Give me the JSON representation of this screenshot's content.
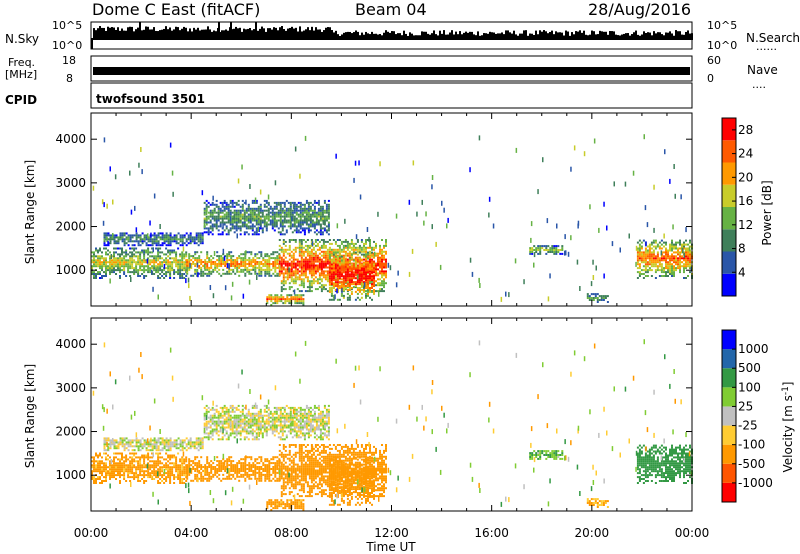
{
  "header": {
    "station": "Dome C East (fitACF)",
    "beam": "Beam 04",
    "date": "28/Aug/2016"
  },
  "strips": {
    "nsky_label": "N.Sky",
    "nsky_top": "10^5",
    "nsky_bottom": "10^0",
    "nsearch_label": "N.Search",
    "nsearch_top": "10^5",
    "nsearch_bottom": "10^0",
    "freq_label": "Freq.",
    "freq_unit": "[MHz]",
    "freq_top": "18",
    "freq_bottom": "8",
    "nave_label": "Nave",
    "nave_top": "60",
    "nave_bottom": "0",
    "cpid_label": "CPID",
    "cpid_value": "twofsound 3501",
    "dots": "......",
    "dots_short": "...."
  },
  "colors": {
    "power": [
      "#0000ff",
      "#2a56a8",
      "#3f7f5a",
      "#66b244",
      "#c8cc2a",
      "#ff9900",
      "#ff5a00",
      "#ff0000"
    ],
    "velocity": [
      "#ff0000",
      "#ff5500",
      "#ff9900",
      "#ffcc33",
      "#c0c0c0",
      "#80cc33",
      "#339944",
      "#2266aa",
      "#0000ff"
    ]
  },
  "chart_data": [
    {
      "type": "heatmap",
      "name": "power",
      "ylabel": "Slant Range [km]",
      "xlabel": "Time UT",
      "x_ticks": [
        "00:00",
        "04:00",
        "08:00",
        "12:00",
        "16:00",
        "20:00",
        "00:00"
      ],
      "y_ticks": [
        "1000",
        "2000",
        "3000",
        "4000"
      ],
      "xlim_hours": [
        0,
        24
      ],
      "ylim_km": [
        180,
        4600
      ],
      "colorbar_label": "Power [dB]",
      "colorbar_ticks": [
        "4",
        "8",
        "12",
        "16",
        "20",
        "24",
        "28"
      ],
      "colorbar_range": [
        0,
        30
      ],
      "regions": [
        {
          "t0": 0.0,
          "t1": 3.8,
          "r0": 800,
          "r1": 1500,
          "peak": 18
        },
        {
          "t0": 3.8,
          "t1": 7.5,
          "r0": 850,
          "r1": 1400,
          "peak": 22
        },
        {
          "t0": 7.5,
          "t1": 11.8,
          "r0": 500,
          "r1": 1700,
          "peak": 28
        },
        {
          "t0": 9.5,
          "t1": 11.3,
          "r0": 300,
          "r1": 1400,
          "peak": 30
        },
        {
          "t0": 4.5,
          "t1": 9.5,
          "r0": 1800,
          "r1": 2600,
          "peak": 12
        },
        {
          "t0": 0.5,
          "t1": 4.5,
          "r0": 1550,
          "r1": 1850,
          "peak": 10
        },
        {
          "t0": 7.0,
          "t1": 8.5,
          "r0": 180,
          "r1": 450,
          "peak": 24
        },
        {
          "t0": 17.5,
          "t1": 18.8,
          "r0": 1350,
          "r1": 1550,
          "peak": 16
        },
        {
          "t0": 19.8,
          "t1": 20.6,
          "r0": 250,
          "r1": 450,
          "peak": 12
        },
        {
          "t0": 21.8,
          "t1": 24.0,
          "r0": 800,
          "r1": 1700,
          "peak": 24
        }
      ]
    },
    {
      "type": "heatmap",
      "name": "velocity",
      "ylabel": "Slant Range [km]",
      "xlabel": "Time UT",
      "x_ticks": [
        "00:00",
        "04:00",
        "08:00",
        "12:00",
        "16:00",
        "20:00",
        "00:00"
      ],
      "y_ticks": [
        "1000",
        "2000",
        "3000",
        "4000"
      ],
      "xlim_hours": [
        0,
        24
      ],
      "ylim_km": [
        180,
        4600
      ],
      "colorbar_label": "Velocity [m s^-1]",
      "colorbar_ticks": [
        "1000",
        "500",
        "100",
        "25",
        "-25",
        "-100",
        "-500",
        "-1000"
      ],
      "regions": [
        {
          "t0": 0.0,
          "t1": 3.8,
          "r0": 800,
          "r1": 1500,
          "vel": -150
        },
        {
          "t0": 3.8,
          "t1": 7.5,
          "r0": 850,
          "r1": 1400,
          "vel": -200
        },
        {
          "t0": 7.5,
          "t1": 11.8,
          "r0": 500,
          "r1": 1700,
          "vel": -200
        },
        {
          "t0": 9.5,
          "t1": 11.3,
          "r0": 300,
          "r1": 1400,
          "vel": -300
        },
        {
          "t0": 4.5,
          "t1": 9.5,
          "r0": 1800,
          "r1": 2600,
          "vel": 0
        },
        {
          "t0": 0.5,
          "t1": 4.5,
          "r0": 1550,
          "r1": 1850,
          "vel": 0
        },
        {
          "t0": 7.0,
          "t1": 8.5,
          "r0": 180,
          "r1": 450,
          "vel": -150
        },
        {
          "t0": 17.5,
          "t1": 18.8,
          "r0": 1350,
          "r1": 1550,
          "vel": 80
        },
        {
          "t0": 19.8,
          "t1": 20.6,
          "r0": 250,
          "r1": 450,
          "vel": -100
        },
        {
          "t0": 21.8,
          "t1": 24.0,
          "r0": 800,
          "r1": 1700,
          "vel": 200
        }
      ]
    }
  ]
}
